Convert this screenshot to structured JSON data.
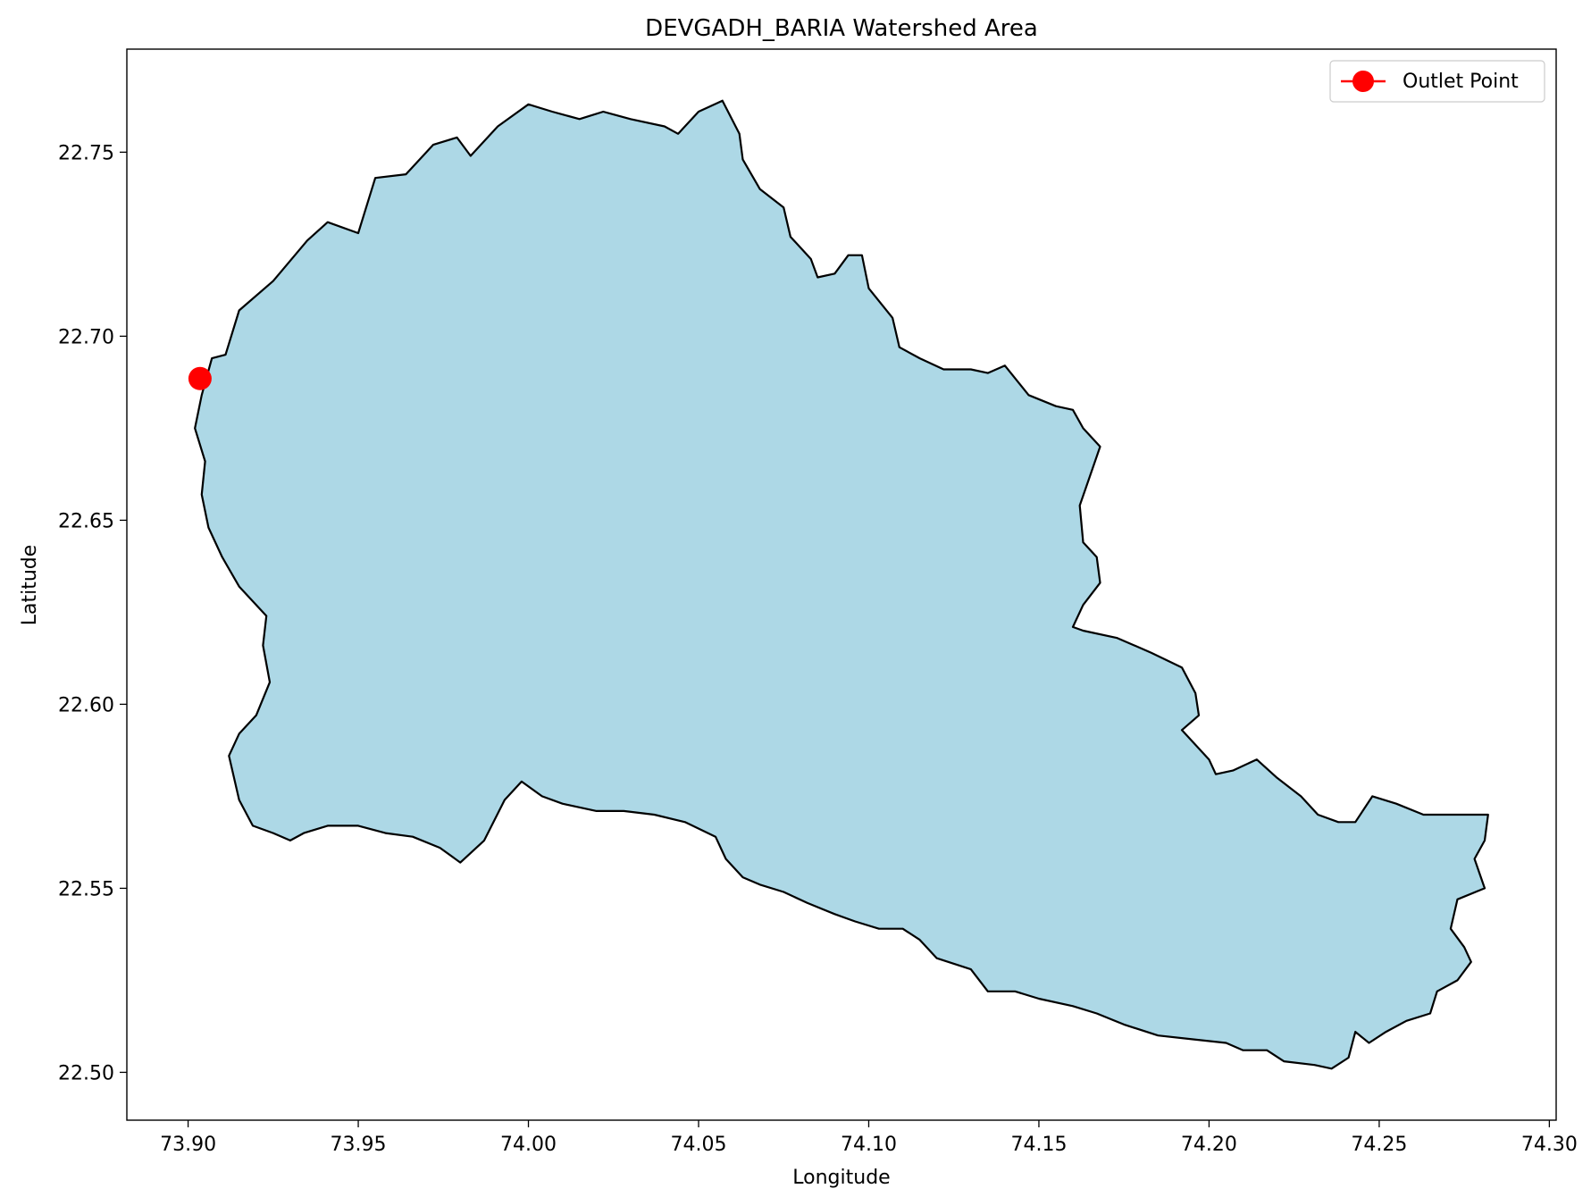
{
  "chart_data": {
    "type": "map",
    "title": "DEVGADH_BARIA Watershed Area",
    "xlabel": "Longitude",
    "ylabel": "Latitude",
    "xlim": [
      73.882,
      74.302
    ],
    "ylim": [
      22.487,
      22.778
    ],
    "xticks": [
      73.9,
      73.95,
      74.0,
      74.05,
      74.1,
      74.15,
      74.2,
      74.25,
      74.3
    ],
    "xtick_labels": [
      "73.90",
      "73.95",
      "74.00",
      "74.05",
      "74.10",
      "74.15",
      "74.20",
      "74.25",
      "74.30"
    ],
    "yticks": [
      22.5,
      22.55,
      22.6,
      22.65,
      22.7,
      22.75
    ],
    "ytick_labels": [
      "22.50",
      "22.55",
      "22.60",
      "22.65",
      "22.70",
      "22.75"
    ],
    "grid": false,
    "legend_position": "top-right",
    "legend": [
      {
        "label": "Outlet Point",
        "color": "#ff0000",
        "marker": "circle"
      }
    ],
    "watershed": {
      "fill": "#add8e6",
      "edge": "#000000",
      "boundary": [
        [
          73.904,
          22.684
        ],
        [
          73.907,
          22.694
        ],
        [
          73.911,
          22.695
        ],
        [
          73.915,
          22.707
        ],
        [
          73.925,
          22.715
        ],
        [
          73.935,
          22.726
        ],
        [
          73.941,
          22.731
        ],
        [
          73.95,
          22.728
        ],
        [
          73.955,
          22.743
        ],
        [
          73.964,
          22.744
        ],
        [
          73.972,
          22.752
        ],
        [
          73.979,
          22.754
        ],
        [
          73.983,
          22.749
        ],
        [
          73.991,
          22.757
        ],
        [
          74.0,
          22.763
        ],
        [
          74.007,
          22.761
        ],
        [
          74.015,
          22.759
        ],
        [
          74.022,
          22.761
        ],
        [
          74.03,
          22.759
        ],
        [
          74.04,
          22.757
        ],
        [
          74.044,
          22.755
        ],
        [
          74.05,
          22.761
        ],
        [
          74.057,
          22.764
        ],
        [
          74.062,
          22.755
        ],
        [
          74.063,
          22.748
        ],
        [
          74.068,
          22.74
        ],
        [
          74.075,
          22.735
        ],
        [
          74.077,
          22.727
        ],
        [
          74.083,
          22.721
        ],
        [
          74.085,
          22.716
        ],
        [
          74.09,
          22.717
        ],
        [
          74.094,
          22.722
        ],
        [
          74.098,
          22.722
        ],
        [
          74.1,
          22.713
        ],
        [
          74.107,
          22.705
        ],
        [
          74.109,
          22.697
        ],
        [
          74.115,
          22.694
        ],
        [
          74.122,
          22.691
        ],
        [
          74.13,
          22.691
        ],
        [
          74.135,
          22.69
        ],
        [
          74.14,
          22.692
        ],
        [
          74.147,
          22.684
        ],
        [
          74.155,
          22.681
        ],
        [
          74.16,
          22.68
        ],
        [
          74.163,
          22.675
        ],
        [
          74.168,
          22.67
        ],
        [
          74.165,
          22.662
        ],
        [
          74.162,
          22.654
        ],
        [
          74.163,
          22.644
        ],
        [
          74.167,
          22.64
        ],
        [
          74.168,
          22.633
        ],
        [
          74.163,
          22.627
        ],
        [
          74.16,
          22.621
        ],
        [
          74.163,
          22.62
        ],
        [
          74.173,
          22.618
        ],
        [
          74.183,
          22.614
        ],
        [
          74.192,
          22.61
        ],
        [
          74.196,
          22.603
        ],
        [
          74.197,
          22.597
        ],
        [
          74.192,
          22.593
        ],
        [
          74.196,
          22.589
        ],
        [
          74.2,
          22.585
        ],
        [
          74.202,
          22.581
        ],
        [
          74.207,
          22.582
        ],
        [
          74.214,
          22.585
        ],
        [
          74.22,
          22.58
        ],
        [
          74.227,
          22.575
        ],
        [
          74.232,
          22.57
        ],
        [
          74.238,
          22.568
        ],
        [
          74.243,
          22.568
        ],
        [
          74.248,
          22.575
        ],
        [
          74.255,
          22.573
        ],
        [
          74.263,
          22.57
        ],
        [
          74.27,
          22.57
        ],
        [
          74.282,
          22.57
        ],
        [
          74.281,
          22.563
        ],
        [
          74.278,
          22.558
        ],
        [
          74.281,
          22.55
        ],
        [
          74.273,
          22.547
        ],
        [
          74.271,
          22.539
        ],
        [
          74.275,
          22.534
        ],
        [
          74.277,
          22.53
        ],
        [
          74.273,
          22.525
        ],
        [
          74.267,
          22.522
        ],
        [
          74.265,
          22.516
        ],
        [
          74.258,
          22.514
        ],
        [
          74.252,
          22.511
        ],
        [
          74.247,
          22.508
        ],
        [
          74.243,
          22.511
        ],
        [
          74.241,
          22.504
        ],
        [
          74.236,
          22.501
        ],
        [
          74.231,
          22.502
        ],
        [
          74.222,
          22.503
        ],
        [
          74.217,
          22.506
        ],
        [
          74.21,
          22.506
        ],
        [
          74.205,
          22.508
        ],
        [
          74.195,
          22.509
        ],
        [
          74.185,
          22.51
        ],
        [
          74.175,
          22.513
        ],
        [
          74.167,
          22.516
        ],
        [
          74.16,
          22.518
        ],
        [
          74.15,
          22.52
        ],
        [
          74.143,
          22.522
        ],
        [
          74.135,
          22.522
        ],
        [
          74.13,
          22.528
        ],
        [
          74.12,
          22.531
        ],
        [
          74.115,
          22.536
        ],
        [
          74.11,
          22.539
        ],
        [
          74.103,
          22.539
        ],
        [
          74.096,
          22.541
        ],
        [
          74.09,
          22.543
        ],
        [
          74.082,
          22.546
        ],
        [
          74.075,
          22.549
        ],
        [
          74.068,
          22.551
        ],
        [
          74.063,
          22.553
        ],
        [
          74.058,
          22.558
        ],
        [
          74.055,
          22.564
        ],
        [
          74.046,
          22.568
        ],
        [
          74.037,
          22.57
        ],
        [
          74.028,
          22.571
        ],
        [
          74.02,
          22.571
        ],
        [
          74.01,
          22.573
        ],
        [
          74.004,
          22.575
        ],
        [
          73.998,
          22.579
        ],
        [
          73.993,
          22.574
        ],
        [
          73.987,
          22.563
        ],
        [
          73.98,
          22.557
        ],
        [
          73.974,
          22.561
        ],
        [
          73.966,
          22.564
        ],
        [
          73.958,
          22.565
        ],
        [
          73.95,
          22.567
        ],
        [
          73.941,
          22.567
        ],
        [
          73.934,
          22.565
        ],
        [
          73.93,
          22.563
        ],
        [
          73.925,
          22.565
        ],
        [
          73.919,
          22.567
        ],
        [
          73.915,
          22.574
        ],
        [
          73.912,
          22.586
        ],
        [
          73.915,
          22.592
        ],
        [
          73.92,
          22.597
        ],
        [
          73.924,
          22.606
        ],
        [
          73.922,
          22.616
        ],
        [
          73.923,
          22.624
        ],
        [
          73.915,
          22.632
        ],
        [
          73.91,
          22.64
        ],
        [
          73.906,
          22.648
        ],
        [
          73.904,
          22.657
        ],
        [
          73.905,
          22.666
        ],
        [
          73.902,
          22.675
        ],
        [
          73.904,
          22.684
        ]
      ]
    },
    "outlet": {
      "lon": 73.9035,
      "lat": 22.6885,
      "label": "Outlet Point",
      "color": "#ff0000"
    }
  }
}
